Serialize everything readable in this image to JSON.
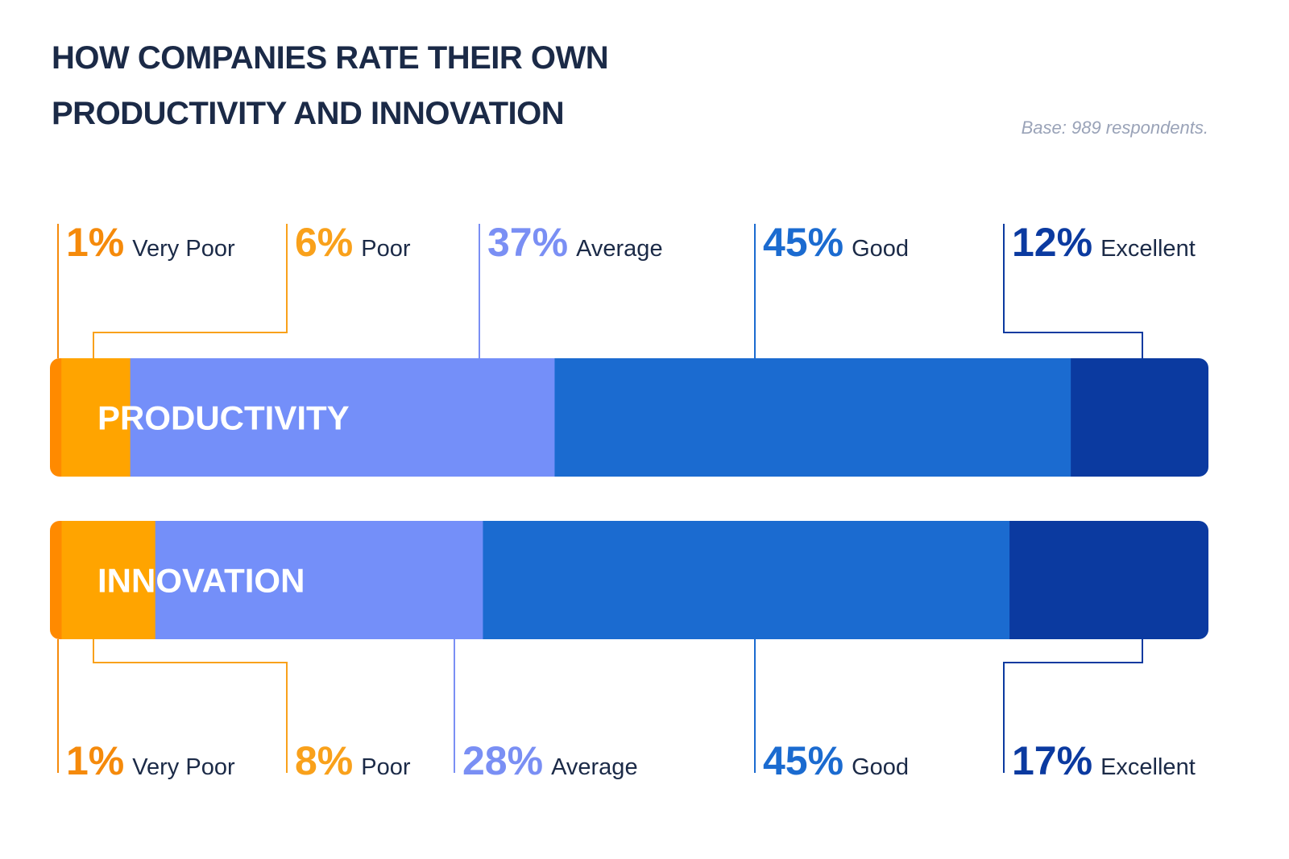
{
  "header": {
    "title_line1": "HOW COMPANIES RATE THEIR OWN",
    "title_line2": "PRODUCTIVITY AND INNOVATION",
    "base_note": "Base: 989 respondents."
  },
  "chart_data": {
    "type": "bar",
    "orientation": "horizontal-stacked-100",
    "title": "HOW COMPANIES RATE THEIR OWN PRODUCTIVITY AND INNOVATION",
    "subtitle": "Base: 989 respondents.",
    "categories": [
      "Very Poor",
      "Poor",
      "Average",
      "Good",
      "Excellent"
    ],
    "colors": [
      "#ff8a00",
      "#ffa400",
      "#748ff9",
      "#1b6bd0",
      "#0b3aa0"
    ],
    "label_colors": [
      "#f58a0b",
      "#f9a11b",
      "#7a8ff4",
      "#1b6bd0",
      "#0b3aa0"
    ],
    "series": [
      {
        "name": "PRODUCTIVITY",
        "values": [
          1,
          6,
          37,
          45,
          12
        ],
        "labels": [
          "1%",
          "6%",
          "37%",
          "45%",
          "12%"
        ]
      },
      {
        "name": "INNOVATION",
        "values": [
          1,
          8,
          28,
          45,
          17
        ],
        "labels": [
          "1%",
          "8%",
          "28%",
          "45%",
          "17%"
        ]
      }
    ],
    "xlim": [
      0,
      100
    ],
    "grid": false,
    "legend": "callout labels above first bar and below second bar"
  }
}
